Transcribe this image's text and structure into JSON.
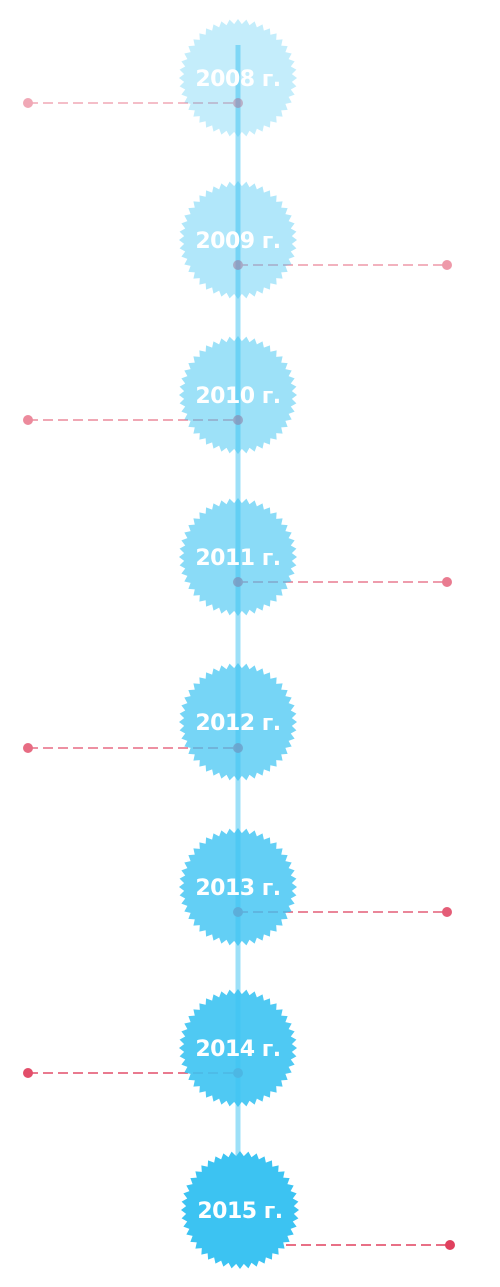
{
  "timeline": {
    "colors": {
      "badge": "#3cc3f2",
      "spine": "#4cc7f3",
      "connector": "#e0405e",
      "label": "#ffffff"
    },
    "items": [
      {
        "year": "2008 г.",
        "side": "left"
      },
      {
        "year": "2009 г.",
        "side": "right"
      },
      {
        "year": "2010 г.",
        "side": "left"
      },
      {
        "year": "2011 г.",
        "side": "right"
      },
      {
        "year": "2012 г.",
        "side": "left"
      },
      {
        "year": "2013 г.",
        "side": "right"
      },
      {
        "year": "2014 г.",
        "side": "left"
      },
      {
        "year": "2015 г.",
        "side": "right"
      }
    ]
  }
}
